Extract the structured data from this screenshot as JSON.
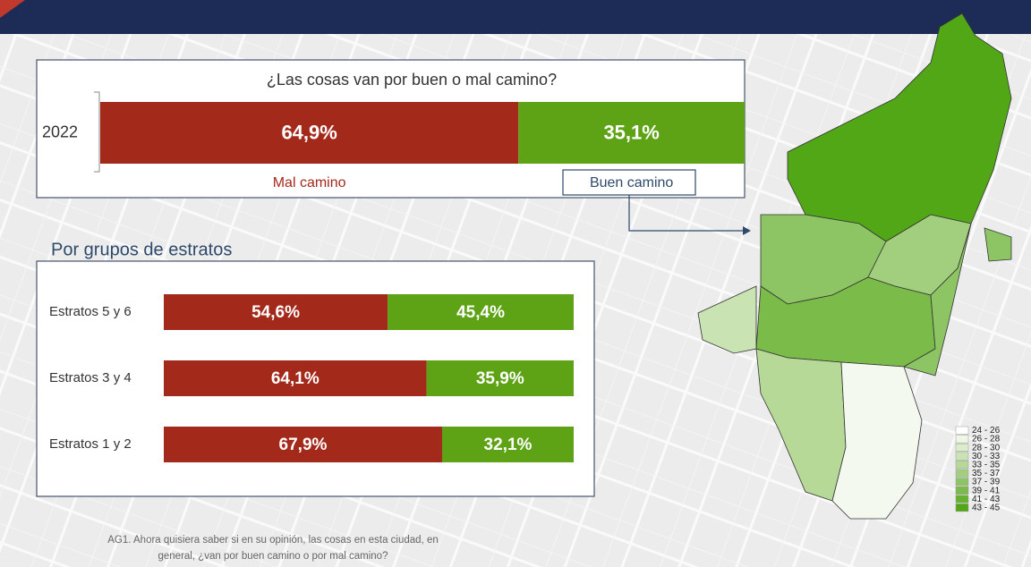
{
  "chart_data": [
    {
      "type": "bar",
      "title": "¿Las cosas van por buen o mal camino?",
      "categories": [
        "2022"
      ],
      "series": [
        {
          "name": "Mal camino",
          "color": "#a3291b",
          "values": [
            64.9
          ],
          "value_labels": [
            "64,9%"
          ]
        },
        {
          "name": "Buen camino",
          "color": "#5ea215",
          "values": [
            35.1
          ],
          "value_labels": [
            "35,1%"
          ]
        }
      ],
      "stacked": true,
      "orientation": "horizontal",
      "xlim": [
        0,
        100
      ]
    },
    {
      "type": "bar",
      "title": "Por grupos de estratos",
      "categories": [
        "Estratos 5 y 6",
        "Estratos 3 y 4",
        "Estratos 1 y 2"
      ],
      "series": [
        {
          "color": "#a3291b",
          "values": [
            54.6,
            64.1,
            67.9
          ],
          "value_labels": [
            "54,6%",
            "64,1%",
            "67,9%"
          ]
        },
        {
          "color": "#5ea215",
          "values": [
            45.4,
            35.9,
            32.1
          ],
          "value_labels": [
            "45,4%",
            "35,9%",
            "32,1%"
          ]
        }
      ],
      "stacked": true,
      "orientation": "horizontal",
      "xlim": [
        0,
        100
      ]
    }
  ],
  "map_legend": {
    "labels": [
      "24 - 26",
      "26 - 28",
      "28 - 30",
      "30 - 33",
      "33 - 35",
      "35 - 37",
      "37 - 39",
      "39 - 41",
      "41 - 43",
      "43 - 45"
    ],
    "colors": [
      "#ffffff",
      "#eef6e6",
      "#dcedcc",
      "#c9e3b2",
      "#b6d998",
      "#a2cf7e",
      "#8ec564",
      "#7abb4a",
      "#66b130",
      "#52a716"
    ]
  },
  "footnote": [
    "AG1. Ahora quisiera saber si en su opinión, las cosas en esta ciudad, en",
    "general,  ¿van por buen camino o por mal camino?"
  ]
}
